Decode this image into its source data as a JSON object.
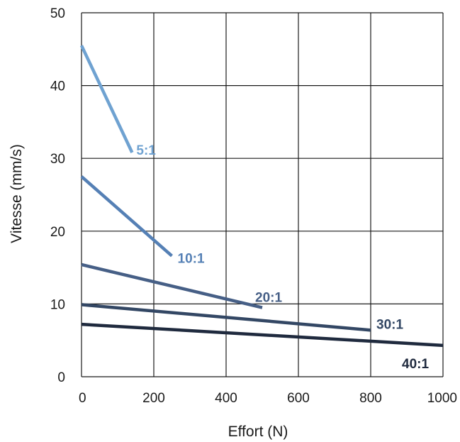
{
  "chart_data": {
    "type": "line",
    "title": "",
    "xlabel": "Effort (N)",
    "ylabel": "Vitesse (mm/s)",
    "xlim": [
      0,
      1000
    ],
    "ylim": [
      0,
      50
    ],
    "x_ticks": [
      0,
      200,
      400,
      600,
      800,
      1000
    ],
    "y_ticks": [
      0,
      10,
      20,
      30,
      40,
      50
    ],
    "grid": true,
    "series": [
      {
        "name": "5:1",
        "color": "#6fa2d1",
        "x": [
          0,
          140
        ],
        "y": [
          45.5,
          30.8
        ]
      },
      {
        "name": "10:1",
        "color": "#5580b5",
        "x": [
          0,
          250
        ],
        "y": [
          27.5,
          16.6
        ]
      },
      {
        "name": "20:1",
        "color": "#465f86",
        "x": [
          0,
          500
        ],
        "y": [
          15.4,
          9.5
        ]
      },
      {
        "name": "30:1",
        "color": "#334764",
        "x": [
          0,
          800
        ],
        "y": [
          9.9,
          6.4
        ]
      },
      {
        "name": "40:1",
        "color": "#1f2a3e",
        "x": [
          0,
          1000
        ],
        "y": [
          7.2,
          4.3
        ]
      }
    ]
  }
}
